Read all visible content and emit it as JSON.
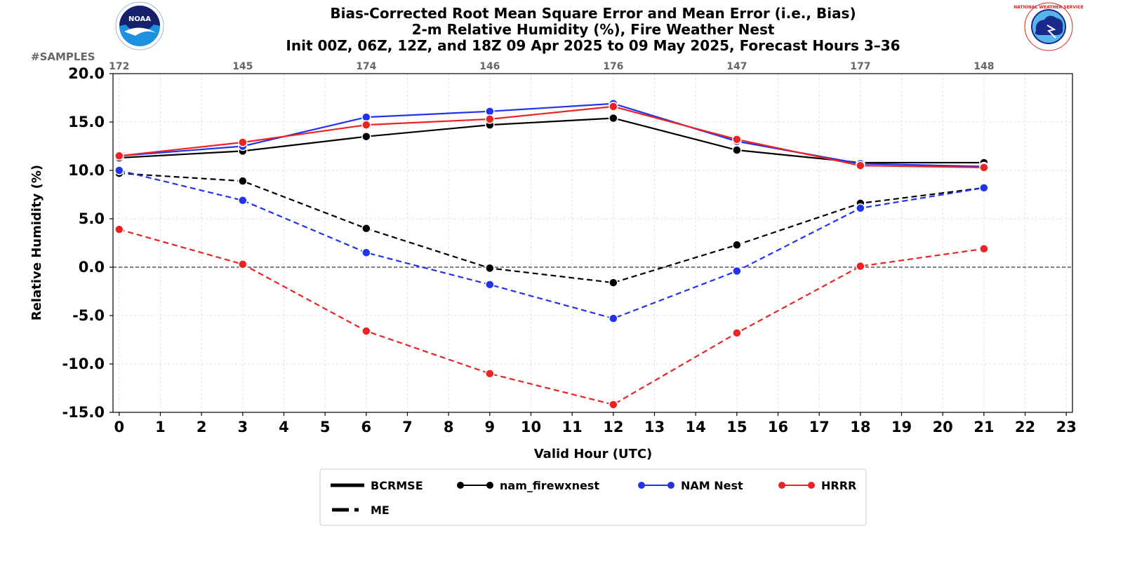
{
  "title_lines": [
    "Bias-Corrected Root Mean Square Error and Mean Error (i.e., Bias)",
    "2-m Relative Humidity (%), Fire Weather Nest",
    "Init 00Z, 06Z, 12Z, and 18Z 09 Apr 2025 to 09 May 2025, Forecast Hours 3–36"
  ],
  "logos": {
    "left": {
      "name": "noaa-logo",
      "text": "NOAA"
    },
    "right": {
      "name": "nws-logo",
      "text": "NATIONAL WEATHER SERVICE"
    }
  },
  "samples_label": "#SAMPLES",
  "chart_data": {
    "type": "line",
    "xlabel": "Valid Hour (UTC)",
    "ylabel": "Relative Humidity (%)",
    "xlim": [
      -0.15,
      23.15
    ],
    "ylim": [
      -15.0,
      20.0
    ],
    "x_ticks": [
      0,
      1,
      2,
      3,
      4,
      5,
      6,
      7,
      8,
      9,
      10,
      11,
      12,
      13,
      14,
      15,
      16,
      17,
      18,
      19,
      20,
      21,
      22,
      23
    ],
    "y_ticks": [
      -15.0,
      -10.0,
      -5.0,
      0.0,
      5.0,
      10.0,
      15.0,
      20.0
    ],
    "y_tick_labels": [
      "-15.0",
      "-10.0",
      "-5.0",
      "0.0",
      "5.0",
      "10.0",
      "15.0",
      "20.0"
    ],
    "grid": true,
    "zero_line": true,
    "x": [
      0,
      3,
      6,
      9,
      12,
      15,
      18,
      21
    ],
    "samples": [
      "172",
      "145",
      "174",
      "146",
      "176",
      "147",
      "177",
      "148"
    ],
    "series": [
      {
        "name": "nam_firewxnest",
        "metric": "BCRMSE",
        "color": "#000000",
        "values": [
          11.3,
          12.0,
          13.5,
          14.7,
          15.4,
          12.1,
          10.8,
          10.8
        ]
      },
      {
        "name": "NAM Nest",
        "metric": "BCRMSE",
        "color": "#2233ee",
        "values": [
          11.5,
          12.5,
          15.5,
          16.1,
          16.9,
          13.0,
          10.7,
          10.4
        ]
      },
      {
        "name": "HRRR",
        "metric": "BCRMSE",
        "color": "#ee2222",
        "values": [
          11.5,
          12.9,
          14.7,
          15.3,
          16.6,
          13.2,
          10.5,
          10.3
        ]
      },
      {
        "name": "nam_firewxnest",
        "metric": "ME",
        "color": "#000000",
        "values": [
          9.7,
          8.9,
          4.0,
          -0.1,
          -1.6,
          2.3,
          6.6,
          8.2
        ]
      },
      {
        "name": "NAM Nest",
        "metric": "ME",
        "color": "#2233ee",
        "values": [
          10.0,
          6.9,
          1.5,
          -1.8,
          -5.3,
          -0.4,
          6.1,
          8.2
        ]
      },
      {
        "name": "HRRR",
        "metric": "ME",
        "color": "#ee2222",
        "values": [
          3.9,
          0.3,
          -6.6,
          -11.0,
          -14.2,
          -6.8,
          0.1,
          1.9
        ]
      }
    ],
    "legend": {
      "placement": "bottom-center",
      "entries": [
        {
          "label": "BCRMSE",
          "kind": "solid",
          "color": "#000000"
        },
        {
          "label": "nam_firewxnest",
          "kind": "marker-line",
          "color": "#000000"
        },
        {
          "label": "NAM Nest",
          "kind": "marker-line",
          "color": "#2233ee"
        },
        {
          "label": "HRRR",
          "kind": "marker-line",
          "color": "#ee2222"
        },
        {
          "label": "ME",
          "kind": "dashed",
          "color": "#000000"
        }
      ]
    }
  }
}
